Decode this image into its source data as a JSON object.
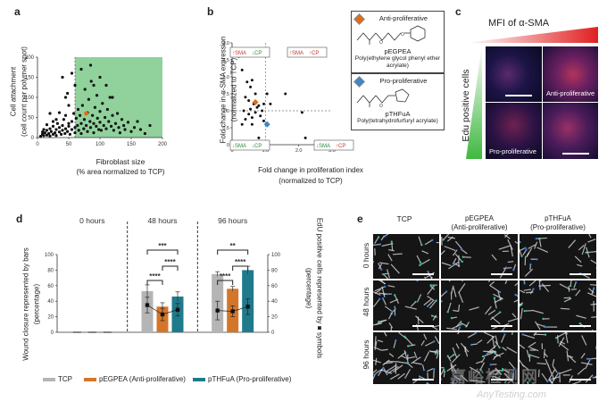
{
  "panel_labels": {
    "a": "a",
    "b": "b",
    "c": "c",
    "d": "d",
    "e": "e"
  },
  "colors": {
    "green_region": "#7dc98b",
    "orange": "#e06c1a",
    "blue_marker": "#3e86c8",
    "tcp_bar": "#b5b5b5",
    "pegpea_bar": "#d4762a",
    "pthfua_bar": "#1f7a8c"
  },
  "chart_data": [
    {
      "id": "a",
      "type": "scatter",
      "title": "",
      "xlabel": "Fibroblast size",
      "xlabel_sub": "(% area normalized to TCP)",
      "ylabel": "Cell attachment",
      "ylabel_sub": "(cell count per polymer spot)",
      "xlim": [
        0,
        200
      ],
      "ylim": [
        0,
        200
      ],
      "xticks": [
        "0",
        "50",
        "100",
        "150",
        "200"
      ],
      "yticks": [
        "0",
        "50",
        "100",
        "150",
        "200"
      ],
      "points": [
        [
          5,
          3
        ],
        [
          8,
          8
        ],
        [
          10,
          5
        ],
        [
          12,
          12
        ],
        [
          15,
          6
        ],
        [
          15,
          18
        ],
        [
          18,
          10
        ],
        [
          20,
          22
        ],
        [
          20,
          4
        ],
        [
          22,
          15
        ],
        [
          25,
          8
        ],
        [
          25,
          28
        ],
        [
          28,
          12
        ],
        [
          30,
          20
        ],
        [
          30,
          5
        ],
        [
          32,
          35
        ],
        [
          35,
          14
        ],
        [
          35,
          25
        ],
        [
          38,
          8
        ],
        [
          40,
          30
        ],
        [
          40,
          18
        ],
        [
          42,
          45
        ],
        [
          44,
          10
        ],
        [
          45,
          22
        ],
        [
          45,
          55
        ],
        [
          48,
          15
        ],
        [
          50,
          35
        ],
        [
          50,
          28
        ],
        [
          52,
          8
        ],
        [
          55,
          40
        ],
        [
          55,
          20
        ],
        [
          58,
          60
        ],
        [
          60,
          25
        ],
        [
          60,
          12
        ],
        [
          62,
          48
        ],
        [
          64,
          30
        ],
        [
          65,
          70
        ],
        [
          66,
          18
        ],
        [
          68,
          55
        ],
        [
          70,
          35
        ],
        [
          70,
          10
        ],
        [
          72,
          80
        ],
        [
          74,
          22
        ],
        [
          75,
          45
        ],
        [
          76,
          120
        ],
        [
          78,
          30
        ],
        [
          80,
          62
        ],
        [
          80,
          15
        ],
        [
          82,
          95
        ],
        [
          84,
          40
        ],
        [
          85,
          25
        ],
        [
          86,
          140
        ],
        [
          88,
          55
        ],
        [
          90,
          35
        ],
        [
          90,
          12
        ],
        [
          92,
          75
        ],
        [
          94,
          28
        ],
        [
          95,
          105
        ],
        [
          96,
          48
        ],
        [
          98,
          20
        ],
        [
          100,
          65
        ],
        [
          100,
          38
        ],
        [
          102,
          18
        ],
        [
          104,
          85
        ],
        [
          106,
          30
        ],
        [
          108,
          50
        ],
        [
          110,
          22
        ],
        [
          112,
          70
        ],
        [
          114,
          40
        ],
        [
          116,
          100
        ],
        [
          118,
          28
        ],
        [
          120,
          55
        ],
        [
          122,
          18
        ],
        [
          125,
          35
        ],
        [
          128,
          60
        ],
        [
          130,
          25
        ],
        [
          132,
          12
        ],
        [
          135,
          45
        ],
        [
          138,
          30
        ],
        [
          140,
          20
        ],
        [
          145,
          38
        ],
        [
          150,
          15
        ],
        [
          155,
          25
        ],
        [
          160,
          40
        ],
        [
          165,
          20
        ],
        [
          172,
          10
        ],
        [
          180,
          30
        ],
        [
          40,
          150
        ],
        [
          55,
          160
        ],
        [
          70,
          170
        ],
        [
          85,
          180
        ],
        [
          100,
          150
        ],
        [
          60,
          130
        ],
        [
          90,
          130
        ],
        [
          45,
          100
        ],
        [
          110,
          130
        ],
        [
          20,
          60
        ],
        [
          30,
          45
        ],
        [
          15,
          32
        ],
        [
          10,
          20
        ],
        [
          8,
          14
        ],
        [
          35,
          62
        ],
        [
          25,
          40
        ],
        [
          50,
          80
        ],
        [
          48,
          110
        ],
        [
          120,
          100
        ]
      ],
      "highlight": {
        "x": 78,
        "y": 60,
        "color": "#e06c1a"
      },
      "region": {
        "x": [
          60,
          200
        ],
        "y": [
          0,
          200
        ],
        "label": ""
      }
    },
    {
      "id": "b",
      "type": "scatter",
      "xlabel": "Fold change in proliferation index",
      "xlabel_sub": "(normalized to TCP)",
      "ylabel": "Fold change in α-SMA expression",
      "ylabel_sub": "(normalized to TCP)",
      "xlim": [
        0,
        3
      ],
      "ylim": [
        0,
        3
      ],
      "xticks": [
        "0",
        "1.0",
        "2.0",
        "3.0"
      ],
      "yticks": [
        "0",
        "0.5",
        "1.0",
        "1.5",
        "2.0",
        "2.5",
        "3.0"
      ],
      "reference_lines": {
        "x": 1.0,
        "y": 1.0
      },
      "points": [
        [
          0.2,
          2.6
        ],
        [
          0.3,
          2.2
        ],
        [
          0.45,
          1.85
        ],
        [
          0.55,
          1.7
        ],
        [
          0.6,
          1.9
        ],
        [
          0.7,
          1.5
        ],
        [
          0.4,
          1.4
        ],
        [
          0.5,
          1.3
        ],
        [
          0.65,
          1.2
        ],
        [
          0.8,
          1.15
        ],
        [
          0.35,
          1.0
        ],
        [
          0.55,
          1.05
        ],
        [
          0.7,
          0.95
        ],
        [
          0.75,
          1.1
        ],
        [
          0.9,
          1.0
        ],
        [
          0.85,
          0.85
        ],
        [
          0.6,
          0.8
        ],
        [
          0.4,
          0.75
        ],
        [
          0.5,
          0.9
        ],
        [
          0.95,
          0.7
        ],
        [
          1.05,
          1.5
        ],
        [
          1.15,
          1.2
        ],
        [
          0.3,
          0.6
        ],
        [
          1.6,
          1.5
        ],
        [
          2.1,
          0.95
        ],
        [
          2.2,
          0.2
        ],
        [
          2.6,
          0.1
        ],
        [
          0.8,
          0.2
        ],
        [
          0.6,
          0.6
        ],
        [
          0.95,
          1.2
        ]
      ],
      "special_points": [
        {
          "label": "pEGPEA",
          "x": 0.7,
          "y": 1.25,
          "color": "#e06c1a"
        },
        {
          "label": "pTHFuA",
          "x": 1.05,
          "y": 0.6,
          "color": "#3e86c8"
        }
      ],
      "quadrant_labels": {
        "top_left": [
          "↑SMA",
          "↓CP"
        ],
        "top_right": [
          "↑SMA",
          "↑CP"
        ],
        "bottom_left": [
          "↓SMA",
          "↓CP"
        ],
        "bottom_right": [
          "↓SMA",
          "↑CP"
        ]
      }
    },
    {
      "id": "d",
      "type": "bar",
      "title": "",
      "timepoints": [
        "0 hours",
        "48 hours",
        "96 hours"
      ],
      "ylabel_left": "Wound closure represented by bars",
      "ylabel_left_sub": "(percentage)",
      "ylabel_right": "EdU positive cells represented by ■ symbols",
      "ylabel_right_sub": "(percentage)",
      "ylim_left": [
        0,
        100
      ],
      "ylim_right": [
        0,
        100
      ],
      "yticks": [
        "0",
        "20",
        "40",
        "60",
        "80",
        "100"
      ],
      "series": [
        {
          "name": "TCP",
          "bars": [
            0,
            53,
            75
          ],
          "bar_err": [
            0,
            8,
            3
          ],
          "symbols": [
            0,
            35,
            28
          ],
          "symbol_err": [
            0,
            10,
            12
          ]
        },
        {
          "name": "pEGPEA (Anti-proliferative)",
          "bars": [
            0,
            33,
            56
          ],
          "bar_err": [
            0,
            5,
            3
          ],
          "symbols": [
            0,
            23,
            27
          ],
          "symbol_err": [
            0,
            8,
            7
          ]
        },
        {
          "name": "pTHFuA (Pro-proliferative)",
          "bars": [
            0,
            46,
            80
          ],
          "bar_err": [
            0,
            6,
            5
          ],
          "symbols": [
            0,
            29,
            33
          ],
          "symbol_err": [
            0,
            8,
            10
          ]
        }
      ],
      "significance": [
        {
          "group": "48 hours",
          "pairs": [
            [
              "TCP",
              "pEGPEA"
            ],
            [
              "TCP",
              "pTHFuA"
            ],
            [
              "pEGPEA",
              "pTHFuA"
            ]
          ],
          "labels": [
            "****",
            "***",
            "****"
          ]
        },
        {
          "group": "96 hours",
          "pairs": [
            [
              "TCP",
              "pEGPEA"
            ],
            [
              "TCP",
              "pTHFuA"
            ],
            [
              "pEGPEA",
              "pTHFuA"
            ]
          ],
          "labels": [
            "****",
            "**",
            "****"
          ]
        }
      ]
    }
  ],
  "panel_b_chem": {
    "anti": {
      "title": "Anti-proliferative",
      "abbr": "pEGPEA",
      "name_line1": "Poly(ethylene glycol phenyl ether",
      "name_line2": "acrylate)"
    },
    "pro": {
      "title": "Pro-proliferative",
      "abbr": "pTHFuA",
      "name_line1": "Poly(tetrahydrofurfuryl acrylate)"
    }
  },
  "panel_c": {
    "mfi_label": "MFI of α-SMA",
    "edu_label": "Edu positive cells",
    "top_right_label": "Anti-proliferative",
    "bottom_left_label": "Pro-proliferative"
  },
  "panel_e": {
    "columns": [
      {
        "title_line1": "TCP",
        "title_line2": ""
      },
      {
        "title_line1": "pEGPEA",
        "title_line2": "(Anti-proliferative)"
      },
      {
        "title_line1": "pTHFuA",
        "title_line2": "(Pro-proliferative)"
      }
    ],
    "rows": [
      "0 hours",
      "48 hours",
      "96 hours"
    ]
  },
  "watermark": {
    "cn": "嘉峪检测网",
    "en": "AnyTesting.com"
  }
}
